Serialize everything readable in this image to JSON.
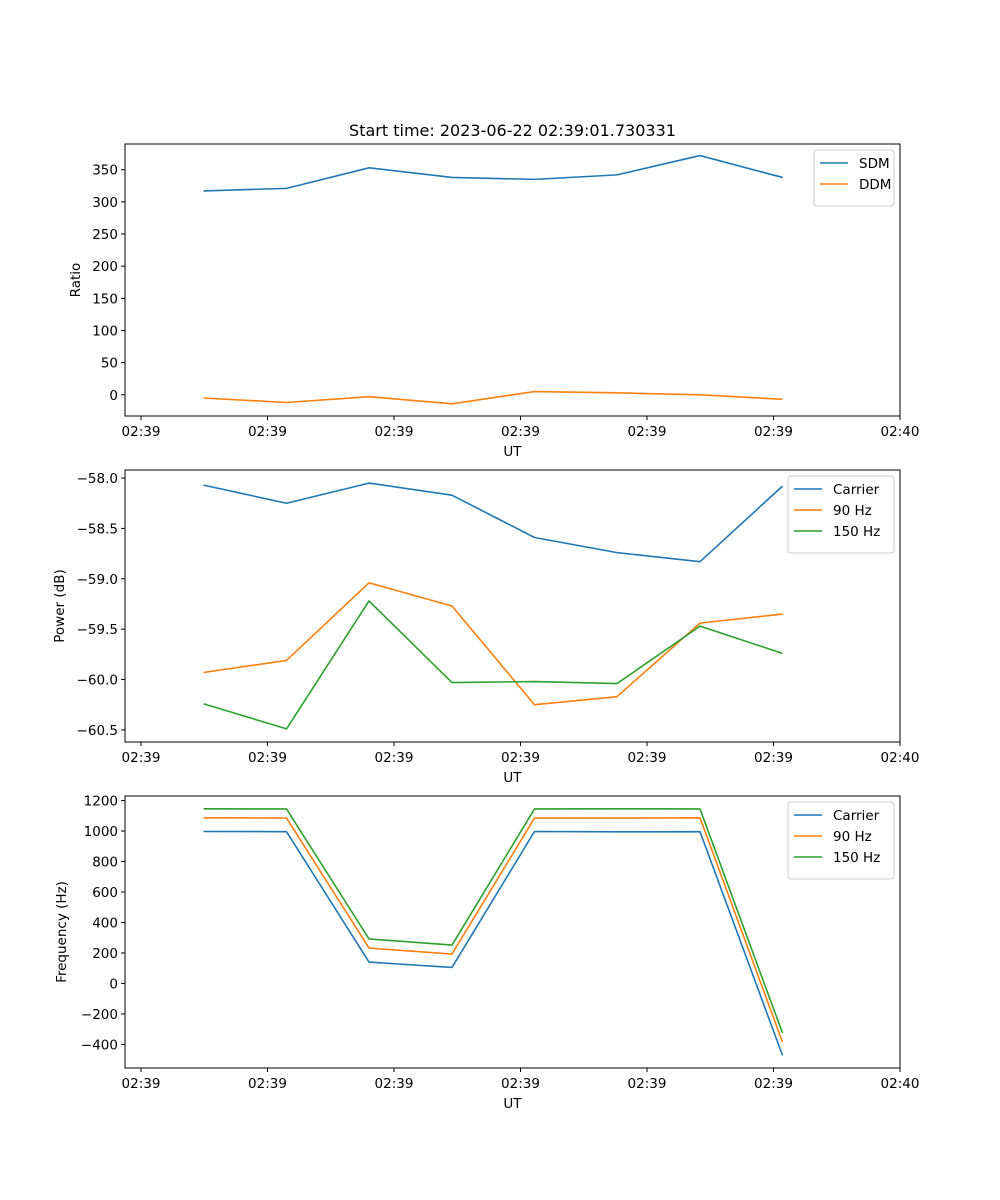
{
  "figure": {
    "title": "Start time: 2023-06-22 02:39:01.730331"
  },
  "chart_data": [
    {
      "type": "line",
      "title": "Start time: 2023-06-22 02:39:01.730331",
      "xlabel": "UT",
      "ylabel": "Ratio",
      "x": [
        1,
        2,
        3,
        4,
        5,
        6,
        7,
        8
      ],
      "xlim": [
        0,
        9.4
      ],
      "ylim": [
        -33,
        390
      ],
      "yticks": [
        0,
        50,
        100,
        150,
        200,
        250,
        300,
        350
      ],
      "xtick_labels": [
        "02:39",
        "02:39",
        "02:39",
        "02:39",
        "02:39",
        "02:39",
        "02:39"
      ],
      "xtick_last_label": "02:40",
      "grid": false,
      "legend_position": "top-right",
      "series": [
        {
          "name": "SDM",
          "color": "#1f77b4",
          "values": [
            317,
            321,
            353,
            338,
            335,
            342,
            372,
            338
          ]
        },
        {
          "name": "DDM",
          "color": "#ff7f0e",
          "values": [
            -5,
            -12,
            -3,
            -14,
            5,
            3,
            0,
            -7
          ]
        }
      ]
    },
    {
      "type": "line",
      "xlabel": "UT",
      "ylabel": "Power (dB)",
      "x": [
        1,
        2,
        3,
        4,
        5,
        6,
        7,
        8
      ],
      "xlim": [
        0,
        9.4
      ],
      "ylim": [
        -60.62,
        -57.92
      ],
      "yticks": [
        -60.5,
        -60.0,
        -59.5,
        -59.0,
        -58.5,
        -58.0
      ],
      "ytick_labels": [
        "−60.5",
        "−60.0",
        "−59.5",
        "−59.0",
        "−58.5",
        "−58.0"
      ],
      "xtick_labels": [
        "02:39",
        "02:39",
        "02:39",
        "02:39",
        "02:39",
        "02:39",
        "02:39"
      ],
      "xtick_last_label": "02:40",
      "grid": false,
      "legend_position": "top-right",
      "series": [
        {
          "name": "Carrier",
          "color": "#1f77b4",
          "values": [
            -58.07,
            -58.25,
            -58.05,
            -58.17,
            -58.59,
            -58.74,
            -58.83,
            -58.08
          ]
        },
        {
          "name": "90 Hz",
          "color": "#ff7f0e",
          "values": [
            -59.93,
            -59.81,
            -59.04,
            -59.27,
            -60.25,
            -60.17,
            -59.44,
            -59.35
          ]
        },
        {
          "name": "150 Hz",
          "color": "#2ca02c",
          "values": [
            -60.24,
            -60.49,
            -59.22,
            -60.03,
            -60.02,
            -60.04,
            -59.47,
            -59.74
          ]
        }
      ]
    },
    {
      "type": "line",
      "xlabel": "UT",
      "ylabel": "Frequency (Hz)",
      "x": [
        1,
        2,
        3,
        4,
        5,
        6,
        7,
        8
      ],
      "xlim": [
        0,
        9.4
      ],
      "ylim": [
        -555,
        1230
      ],
      "yticks": [
        -400,
        -200,
        0,
        200,
        400,
        600,
        800,
        1000,
        1200
      ],
      "ytick_labels": [
        "−400",
        "−200",
        "0",
        "200",
        "400",
        "600",
        "800",
        "1000",
        "1200"
      ],
      "xtick_labels": [
        "02:39",
        "02:39",
        "02:39",
        "02:39",
        "02:39",
        "02:39",
        "02:39"
      ],
      "xtick_last_label": "02:40",
      "grid": false,
      "legend_position": "top-right",
      "series": [
        {
          "name": "Carrier",
          "color": "#1f77b4",
          "values": [
            997,
            996,
            140,
            105,
            997,
            995,
            996,
            -472
          ]
        },
        {
          "name": "90 Hz",
          "color": "#ff7f0e",
          "values": [
            1087,
            1085,
            232,
            193,
            1085,
            1085,
            1087,
            -385
          ]
        },
        {
          "name": "150 Hz",
          "color": "#2ca02c",
          "values": [
            1146,
            1145,
            292,
            252,
            1145,
            1146,
            1145,
            -325
          ]
        }
      ]
    }
  ]
}
